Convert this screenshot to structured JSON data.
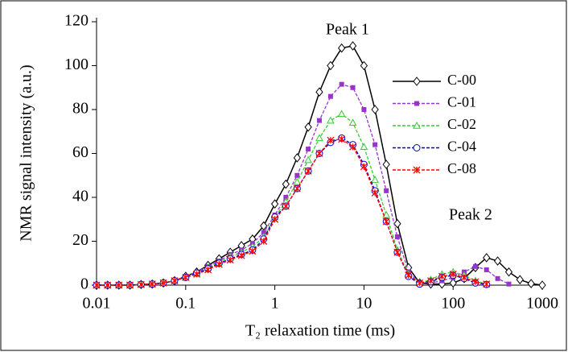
{
  "chart_data": {
    "type": "line",
    "xlabel": "T₂ relaxation time (ms)",
    "ylabel": "NMR signal intensity (a.u.)",
    "annotations": [
      "Peak 1",
      "Peak 2"
    ],
    "log_x": true,
    "xlim": [
      0.01,
      1000
    ],
    "xticks": [
      0.01,
      0.1,
      1,
      10,
      100,
      1000
    ],
    "ylim": [
      0,
      120
    ],
    "yticks": [
      0,
      20,
      40,
      60,
      80,
      100,
      120
    ],
    "legend": "upper right",
    "x": [
      0.01,
      0.0133,
      0.0178,
      0.0237,
      0.0316,
      0.0422,
      0.0562,
      0.075,
      0.1,
      0.133,
      0.178,
      0.237,
      0.316,
      0.422,
      0.562,
      0.75,
      1,
      1.33,
      1.78,
      2.37,
      3.16,
      4.22,
      5.62,
      7.5,
      10,
      13.3,
      17.8,
      23.7,
      31.6,
      42.2,
      56.2,
      75,
      100,
      133,
      178,
      237,
      316,
      422,
      562,
      750,
      1000
    ],
    "series": [
      {
        "name": "C-00",
        "color": "#000000",
        "marker": "diamond",
        "dash": false,
        "values": [
          0,
          0,
          0,
          0,
          0.3,
          0.5,
          1,
          2,
          4,
          6,
          9,
          12,
          15,
          18,
          21,
          27,
          37,
          46,
          58,
          72,
          88,
          100,
          108,
          109,
          100,
          80,
          55,
          28,
          8,
          1,
          0.5,
          0.5,
          1,
          3,
          8,
          12.5,
          11,
          6,
          2.5,
          0.7,
          0
        ]
      },
      {
        "name": "C-01",
        "color": "#9933cc",
        "marker": "square",
        "dash": true,
        "values": [
          0,
          0,
          0,
          0,
          0.3,
          0.5,
          1,
          2,
          4,
          6,
          8.5,
          11,
          14,
          16,
          19,
          24,
          32,
          40,
          50,
          62,
          75,
          86,
          91.5,
          90,
          80,
          64,
          43,
          22,
          6,
          1,
          1,
          2,
          3.5,
          6,
          8.5,
          7,
          3,
          0.5,
          null,
          null,
          null
        ]
      },
      {
        "name": "C-02",
        "color": "#33cc33",
        "marker": "triangle",
        "dash": true,
        "values": [
          0,
          0,
          0,
          0,
          0.3,
          0.5,
          1,
          2,
          3.5,
          5.5,
          8,
          10.5,
          13,
          15,
          17.5,
          22,
          31,
          38,
          47,
          57,
          67,
          75,
          78,
          74,
          63,
          48,
          32,
          16,
          5,
          1,
          2.5,
          5,
          6,
          4.5,
          2,
          0.5,
          null,
          null,
          null,
          null,
          null
        ]
      },
      {
        "name": "C-04",
        "color": "#0000cc",
        "marker": "circle",
        "dash": true,
        "values": [
          0,
          0,
          0,
          0,
          0.3,
          0.5,
          1,
          2,
          3.5,
          5.5,
          7.5,
          10,
          12,
          14,
          16,
          21,
          31,
          36,
          44,
          52,
          60,
          65,
          67,
          64,
          55,
          43,
          29,
          15,
          4,
          0.5,
          1.5,
          3.5,
          4.5,
          3,
          1,
          0.3,
          null,
          null,
          null,
          null,
          null
        ]
      },
      {
        "name": "C-08",
        "color": "#ff0000",
        "marker": "star",
        "dash": true,
        "values": [
          0,
          0,
          0,
          0,
          0.3,
          0.5,
          1,
          2,
          3.5,
          5,
          7,
          9.5,
          11.5,
          13.5,
          15.5,
          20,
          30,
          36,
          44,
          52,
          60,
          66,
          66.5,
          63,
          54,
          42,
          29,
          15,
          4.5,
          1,
          2,
          4,
          5,
          3.5,
          1.5,
          0.5,
          null,
          null,
          null,
          null,
          null
        ]
      }
    ]
  }
}
